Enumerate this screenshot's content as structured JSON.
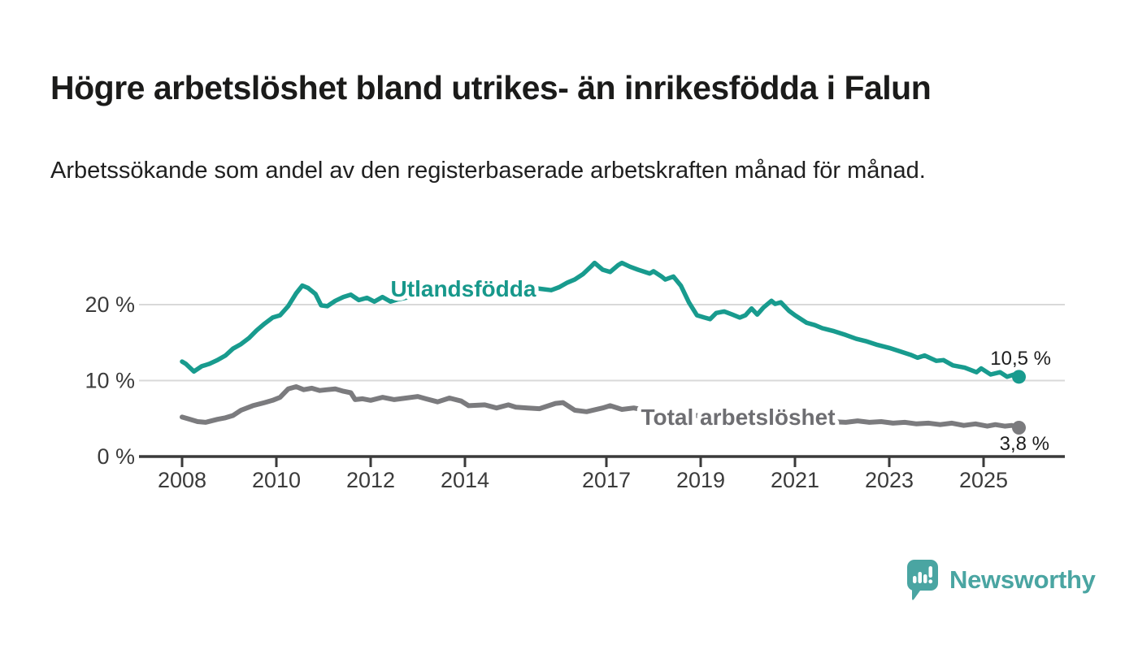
{
  "header": {
    "title": "Högre arbetslöshet bland utrikes- än inrikesfödda i Falun",
    "subtitle": "Arbetssökande som andel av den registerbaserade arbetskraften månad för månad."
  },
  "footer": {
    "brand": "Newsworthy",
    "brand_color": "#4aa5a2",
    "logo_icon": "bar-chart-map-pin-icon"
  },
  "chart_data": {
    "type": "line",
    "title": "Högre arbetslöshet bland utrikes- än inrikesfödda i Falun",
    "subtitle": "Arbetssökande som andel av den registerbaserade arbetskraften månad för månad.",
    "unit": "%",
    "grid": "horizontal",
    "legend": "inline-labels",
    "xlim": [
      2007.1,
      2026.7
    ],
    "ylim": [
      0,
      27
    ],
    "x_ticks": [
      "2008",
      "2010",
      "2012",
      "2014",
      "2017",
      "2019",
      "2021",
      "2023",
      "2025"
    ],
    "x_tick_years": [
      2008,
      2010,
      2012,
      2014,
      2017,
      2019,
      2021,
      2023,
      2025
    ],
    "y_ticks": [
      {
        "value": 0,
        "label": "0 %"
      },
      {
        "value": 10,
        "label": "10 %"
      },
      {
        "value": 20,
        "label": "20 %"
      }
    ],
    "colors": {
      "grid": "#d9d9d9",
      "axis": "#3a3a3a",
      "tick_text": "#3b3b3b"
    },
    "series": [
      {
        "name": "Utlandsfödda",
        "color": "#189b8e",
        "end_label": "10,5 %",
        "end_value": 10.5,
        "points": [
          [
            2008.0,
            12.5
          ],
          [
            2008.08,
            12.2
          ],
          [
            2008.25,
            11.2
          ],
          [
            2008.42,
            11.9
          ],
          [
            2008.58,
            12.2
          ],
          [
            2008.75,
            12.7
          ],
          [
            2008.92,
            13.3
          ],
          [
            2009.08,
            14.2
          ],
          [
            2009.25,
            14.8
          ],
          [
            2009.42,
            15.6
          ],
          [
            2009.58,
            16.6
          ],
          [
            2009.75,
            17.5
          ],
          [
            2009.92,
            18.3
          ],
          [
            2010.08,
            18.6
          ],
          [
            2010.25,
            19.8
          ],
          [
            2010.42,
            21.5
          ],
          [
            2010.55,
            22.5
          ],
          [
            2010.67,
            22.2
          ],
          [
            2010.83,
            21.4
          ],
          [
            2010.95,
            19.9
          ],
          [
            2011.08,
            19.8
          ],
          [
            2011.25,
            20.5
          ],
          [
            2011.42,
            21.0
          ],
          [
            2011.58,
            21.3
          ],
          [
            2011.75,
            20.6
          ],
          [
            2011.92,
            20.9
          ],
          [
            2012.08,
            20.4
          ],
          [
            2012.25,
            21.0
          ],
          [
            2012.42,
            20.4
          ],
          [
            2012.58,
            20.7
          ],
          [
            2012.83,
            21.0
          ],
          [
            2013.08,
            21.2
          ],
          [
            2013.33,
            21.5
          ],
          [
            2013.58,
            21.3
          ],
          [
            2013.83,
            21.6
          ],
          [
            2014.08,
            21.9
          ],
          [
            2014.33,
            22.2
          ],
          [
            2014.58,
            21.9
          ],
          [
            2014.83,
            22.3
          ],
          [
            2015.08,
            22.0
          ],
          [
            2015.33,
            22.4
          ],
          [
            2015.58,
            22.1
          ],
          [
            2015.83,
            21.9
          ],
          [
            2016.0,
            22.3
          ],
          [
            2016.17,
            22.9
          ],
          [
            2016.33,
            23.3
          ],
          [
            2016.5,
            24.0
          ],
          [
            2016.67,
            25.0
          ],
          [
            2016.75,
            25.5
          ],
          [
            2016.92,
            24.6
          ],
          [
            2017.08,
            24.3
          ],
          [
            2017.25,
            25.2
          ],
          [
            2017.33,
            25.5
          ],
          [
            2017.5,
            25.0
          ],
          [
            2017.67,
            24.6
          ],
          [
            2017.92,
            24.1
          ],
          [
            2018.0,
            24.4
          ],
          [
            2018.17,
            23.7
          ],
          [
            2018.25,
            23.3
          ],
          [
            2018.42,
            23.7
          ],
          [
            2018.58,
            22.5
          ],
          [
            2018.75,
            20.3
          ],
          [
            2018.92,
            18.6
          ],
          [
            2019.08,
            18.3
          ],
          [
            2019.2,
            18.1
          ],
          [
            2019.33,
            18.9
          ],
          [
            2019.5,
            19.1
          ],
          [
            2019.67,
            18.7
          ],
          [
            2019.83,
            18.3
          ],
          [
            2019.95,
            18.6
          ],
          [
            2020.08,
            19.5
          ],
          [
            2020.2,
            18.7
          ],
          [
            2020.33,
            19.6
          ],
          [
            2020.5,
            20.5
          ],
          [
            2020.58,
            20.1
          ],
          [
            2020.7,
            20.3
          ],
          [
            2020.87,
            19.2
          ],
          [
            2021.0,
            18.6
          ],
          [
            2021.1,
            18.2
          ],
          [
            2021.25,
            17.6
          ],
          [
            2021.42,
            17.3
          ],
          [
            2021.58,
            16.9
          ],
          [
            2021.83,
            16.5
          ],
          [
            2022.08,
            16.0
          ],
          [
            2022.3,
            15.5
          ],
          [
            2022.5,
            15.2
          ],
          [
            2022.75,
            14.7
          ],
          [
            2023.0,
            14.3
          ],
          [
            2023.2,
            13.9
          ],
          [
            2023.45,
            13.4
          ],
          [
            2023.6,
            13.0
          ],
          [
            2023.75,
            13.3
          ],
          [
            2024.0,
            12.6
          ],
          [
            2024.15,
            12.7
          ],
          [
            2024.35,
            12.0
          ],
          [
            2024.6,
            11.7
          ],
          [
            2024.85,
            11.1
          ],
          [
            2024.95,
            11.6
          ],
          [
            2025.15,
            10.8
          ],
          [
            2025.35,
            11.1
          ],
          [
            2025.5,
            10.5
          ],
          [
            2025.65,
            10.8
          ],
          [
            2025.75,
            10.5
          ]
        ]
      },
      {
        "name": "Total arbetslöshet",
        "color": "#7b7b7e",
        "end_label": "3,8 %",
        "end_value": 3.8,
        "points": [
          [
            2008.0,
            5.2
          ],
          [
            2008.17,
            4.9
          ],
          [
            2008.33,
            4.6
          ],
          [
            2008.5,
            4.5
          ],
          [
            2008.75,
            4.9
          ],
          [
            2008.92,
            5.1
          ],
          [
            2009.08,
            5.4
          ],
          [
            2009.25,
            6.1
          ],
          [
            2009.5,
            6.7
          ],
          [
            2009.75,
            7.1
          ],
          [
            2009.92,
            7.4
          ],
          [
            2010.08,
            7.8
          ],
          [
            2010.25,
            8.9
          ],
          [
            2010.42,
            9.2
          ],
          [
            2010.58,
            8.8
          ],
          [
            2010.75,
            9.0
          ],
          [
            2010.92,
            8.7
          ],
          [
            2011.08,
            8.8
          ],
          [
            2011.25,
            8.9
          ],
          [
            2011.42,
            8.6
          ],
          [
            2011.58,
            8.4
          ],
          [
            2011.67,
            7.5
          ],
          [
            2011.83,
            7.6
          ],
          [
            2012.0,
            7.4
          ],
          [
            2012.25,
            7.8
          ],
          [
            2012.5,
            7.5
          ],
          [
            2012.75,
            7.7
          ],
          [
            2013.0,
            7.9
          ],
          [
            2013.17,
            7.6
          ],
          [
            2013.42,
            7.2
          ],
          [
            2013.67,
            7.7
          ],
          [
            2013.92,
            7.3
          ],
          [
            2014.08,
            6.7
          ],
          [
            2014.42,
            6.8
          ],
          [
            2014.67,
            6.4
          ],
          [
            2014.92,
            6.8
          ],
          [
            2015.08,
            6.5
          ],
          [
            2015.33,
            6.4
          ],
          [
            2015.58,
            6.3
          ],
          [
            2015.92,
            7.0
          ],
          [
            2016.08,
            7.1
          ],
          [
            2016.33,
            6.1
          ],
          [
            2016.58,
            5.9
          ],
          [
            2016.92,
            6.4
          ],
          [
            2017.08,
            6.7
          ],
          [
            2017.33,
            6.2
          ],
          [
            2017.58,
            6.4
          ],
          [
            2017.83,
            6.1
          ],
          [
            2018.08,
            5.9
          ],
          [
            2018.42,
            5.7
          ],
          [
            2018.75,
            5.5
          ],
          [
            2019.08,
            5.3
          ],
          [
            2019.42,
            5.1
          ],
          [
            2019.75,
            5.0
          ],
          [
            2020.08,
            5.2
          ],
          [
            2020.42,
            5.4
          ],
          [
            2020.75,
            5.2
          ],
          [
            2021.08,
            5.0
          ],
          [
            2021.42,
            4.8
          ],
          [
            2021.75,
            4.6
          ],
          [
            2022.08,
            4.5
          ],
          [
            2022.33,
            4.7
          ],
          [
            2022.58,
            4.5
          ],
          [
            2022.83,
            4.6
          ],
          [
            2023.08,
            4.4
          ],
          [
            2023.33,
            4.5
          ],
          [
            2023.58,
            4.3
          ],
          [
            2023.83,
            4.4
          ],
          [
            2024.08,
            4.2
          ],
          [
            2024.33,
            4.4
          ],
          [
            2024.58,
            4.1
          ],
          [
            2024.83,
            4.3
          ],
          [
            2025.08,
            4.0
          ],
          [
            2025.25,
            4.2
          ],
          [
            2025.45,
            4.0
          ],
          [
            2025.6,
            4.1
          ],
          [
            2025.75,
            3.8
          ]
        ]
      }
    ]
  }
}
